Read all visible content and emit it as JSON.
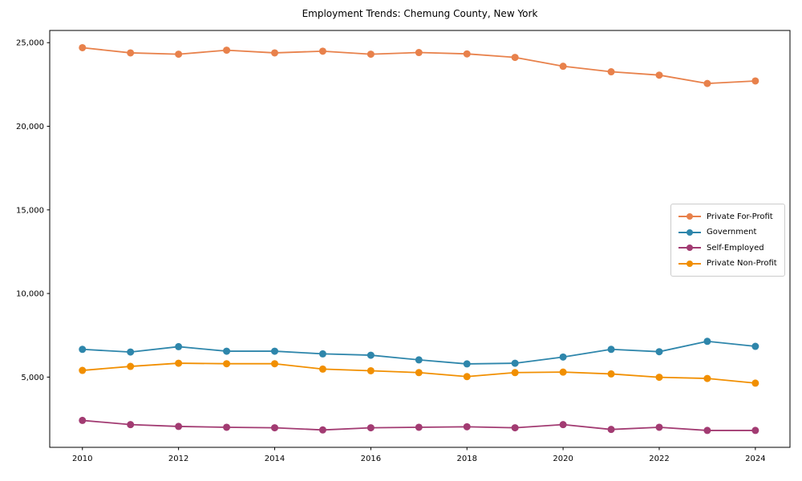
{
  "chart_data": {
    "type": "line",
    "title": "Employment Trends: Chemung County, New York",
    "x": [
      2010,
      2011,
      2012,
      2013,
      2014,
      2015,
      2016,
      2017,
      2018,
      2019,
      2020,
      2021,
      2022,
      2023,
      2024
    ],
    "series": [
      {
        "name": "Private For-Profit",
        "color": "#E8814B",
        "values": [
          24700,
          24390,
          24310,
          24550,
          24390,
          24490,
          24310,
          24410,
          24330,
          24120,
          23590,
          23260,
          23060,
          22560,
          22710
        ]
      },
      {
        "name": "Government",
        "color": "#2E86AB",
        "values": [
          6660,
          6500,
          6820,
          6550,
          6550,
          6390,
          6310,
          6030,
          5790,
          5830,
          6200,
          6660,
          6520,
          7140,
          6840
        ]
      },
      {
        "name": "Self-Employed",
        "color": "#A23B72",
        "values": [
          2410,
          2160,
          2050,
          2000,
          1970,
          1840,
          1970,
          2000,
          2030,
          1970,
          2160,
          1870,
          2000,
          1810,
          1810
        ]
      },
      {
        "name": "Private Non-Profit",
        "color": "#F18F01",
        "values": [
          5400,
          5640,
          5830,
          5800,
          5800,
          5480,
          5380,
          5270,
          5030,
          5270,
          5300,
          5190,
          4990,
          4920,
          4640
        ]
      }
    ],
    "xticks": [
      2010,
      2012,
      2014,
      2016,
      2018,
      2020,
      2022,
      2024
    ],
    "xtick_labels": [
      "2010",
      "2012",
      "2014",
      "2016",
      "2018",
      "2020",
      "2022",
      "2024"
    ],
    "yticks": [
      5000,
      10000,
      15000,
      20000,
      25000
    ],
    "ytick_labels": [
      "5,000",
      "10,000",
      "15,000",
      "20,000",
      "25,000"
    ],
    "xlim": [
      2009.32,
      2024.72
    ],
    "ylim": [
      800,
      25730
    ],
    "grid": false,
    "legend_position": "center right",
    "axis_color": "#000000",
    "background_color": "#ffffff"
  }
}
